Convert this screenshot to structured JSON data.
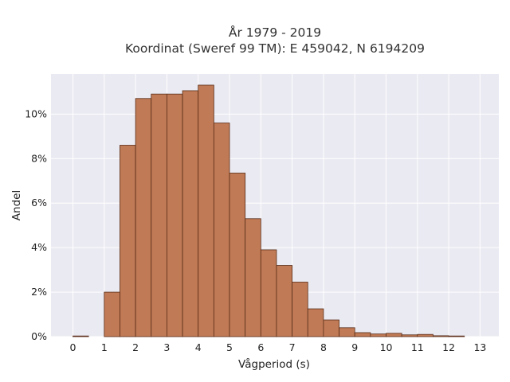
{
  "chart_data": {
    "type": "bar",
    "title_lines": [
      "År 1979 - 2019",
      "Koordinat (Sweref 99 TM): E 459042, N 6194209"
    ],
    "xlabel": "Vågperiod (s)",
    "ylabel": "Andel",
    "xlim": [
      -0.7,
      13.6
    ],
    "ylim": [
      0,
      11.8
    ],
    "x_ticks": [
      0,
      1,
      2,
      3,
      4,
      5,
      6,
      7,
      8,
      9,
      10,
      11,
      12,
      13
    ],
    "x_tick_labels": [
      "0",
      "1",
      "2",
      "3",
      "4",
      "5",
      "6",
      "7",
      "8",
      "9",
      "10",
      "11",
      "12",
      "13"
    ],
    "y_ticks": [
      0,
      2,
      4,
      6,
      8,
      10
    ],
    "y_tick_labels": [
      "0%",
      "2%",
      "4%",
      "6%",
      "8%",
      "10%"
    ],
    "bin_width": 0.5,
    "bin_starts": [
      0,
      0.5,
      1,
      1.5,
      2,
      2.5,
      3,
      3.5,
      4,
      4.5,
      5,
      5.5,
      6,
      6.5,
      7,
      7.5,
      8,
      8.5,
      9,
      9.5,
      10,
      10.5,
      11,
      11.5,
      12,
      12.5
    ],
    "values": [
      0.03,
      0.0,
      2.0,
      8.6,
      10.7,
      10.9,
      10.9,
      11.05,
      11.3,
      9.6,
      7.35,
      5.3,
      3.9,
      3.2,
      2.45,
      1.25,
      0.75,
      0.4,
      0.18,
      0.12,
      0.15,
      0.08,
      0.1,
      0.04,
      0.03,
      0.0
    ],
    "bar_color": "#c07a55",
    "bar_edge_color": "#5a2e1a",
    "background_color": "#eaeaf2",
    "grid": true,
    "grid_color": "#ffffff"
  }
}
